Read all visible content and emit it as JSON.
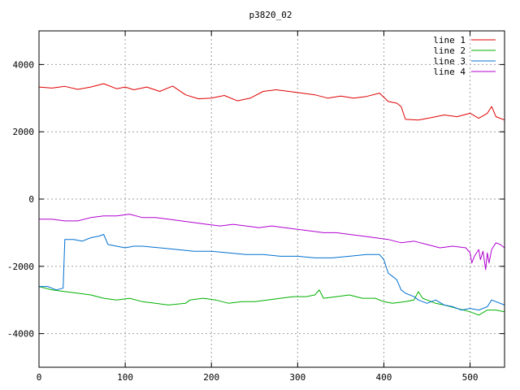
{
  "chart_data": {
    "type": "line",
    "title": "p3820_02",
    "xlabel": "",
    "ylabel": "",
    "xlim": [
      0,
      540
    ],
    "ylim": [
      -5000,
      5000
    ],
    "xticks": [
      0,
      100,
      200,
      300,
      400,
      500
    ],
    "yticks": [
      -4000,
      -2000,
      0,
      2000,
      4000
    ],
    "grid": true,
    "legend_position": "top-right",
    "series": [
      {
        "name": "line 1",
        "color": "#e00000",
        "points": [
          [
            0,
            3330
          ],
          [
            15,
            3300
          ],
          [
            30,
            3350
          ],
          [
            45,
            3260
          ],
          [
            60,
            3330
          ],
          [
            75,
            3430
          ],
          [
            90,
            3280
          ],
          [
            100,
            3330
          ],
          [
            110,
            3250
          ],
          [
            125,
            3330
          ],
          [
            140,
            3200
          ],
          [
            155,
            3360
          ],
          [
            170,
            3100
          ],
          [
            185,
            2980
          ],
          [
            200,
            3000
          ],
          [
            215,
            3080
          ],
          [
            230,
            2920
          ],
          [
            245,
            3000
          ],
          [
            260,
            3200
          ],
          [
            275,
            3250
          ],
          [
            290,
            3200
          ],
          [
            305,
            3150
          ],
          [
            320,
            3100
          ],
          [
            335,
            3000
          ],
          [
            350,
            3060
          ],
          [
            365,
            3000
          ],
          [
            380,
            3050
          ],
          [
            395,
            3150
          ],
          [
            405,
            2900
          ],
          [
            415,
            2850
          ],
          [
            420,
            2750
          ],
          [
            425,
            2370
          ],
          [
            440,
            2350
          ],
          [
            455,
            2420
          ],
          [
            470,
            2500
          ],
          [
            485,
            2450
          ],
          [
            500,
            2550
          ],
          [
            510,
            2400
          ],
          [
            520,
            2550
          ],
          [
            525,
            2750
          ],
          [
            530,
            2450
          ],
          [
            540,
            2350
          ]
        ]
      },
      {
        "name": "line 2",
        "color": "#00b000",
        "points": [
          [
            0,
            -2600
          ],
          [
            15,
            -2700
          ],
          [
            30,
            -2750
          ],
          [
            45,
            -2800
          ],
          [
            60,
            -2850
          ],
          [
            75,
            -2950
          ],
          [
            90,
            -3000
          ],
          [
            105,
            -2950
          ],
          [
            120,
            -3050
          ],
          [
            135,
            -3100
          ],
          [
            150,
            -3150
          ],
          [
            170,
            -3100
          ],
          [
            175,
            -3000
          ],
          [
            190,
            -2950
          ],
          [
            205,
            -3000
          ],
          [
            220,
            -3100
          ],
          [
            235,
            -3050
          ],
          [
            250,
            -3050
          ],
          [
            265,
            -3000
          ],
          [
            280,
            -2950
          ],
          [
            295,
            -2900
          ],
          [
            310,
            -2900
          ],
          [
            320,
            -2850
          ],
          [
            325,
            -2700
          ],
          [
            330,
            -2950
          ],
          [
            345,
            -2900
          ],
          [
            360,
            -2850
          ],
          [
            375,
            -2950
          ],
          [
            390,
            -2950
          ],
          [
            400,
            -3050
          ],
          [
            410,
            -3100
          ],
          [
            425,
            -3050
          ],
          [
            435,
            -3000
          ],
          [
            440,
            -2750
          ],
          [
            445,
            -2950
          ],
          [
            460,
            -3100
          ],
          [
            470,
            -3150
          ],
          [
            485,
            -3250
          ],
          [
            500,
            -3350
          ],
          [
            510,
            -3450
          ],
          [
            520,
            -3300
          ],
          [
            530,
            -3300
          ],
          [
            540,
            -3350
          ]
        ]
      },
      {
        "name": "line 3",
        "color": "#0070d0",
        "points": [
          [
            0,
            -2600
          ],
          [
            10,
            -2600
          ],
          [
            20,
            -2700
          ],
          [
            28,
            -2650
          ],
          [
            30,
            -1200
          ],
          [
            40,
            -1200
          ],
          [
            50,
            -1250
          ],
          [
            60,
            -1150
          ],
          [
            70,
            -1100
          ],
          [
            75,
            -1050
          ],
          [
            80,
            -1350
          ],
          [
            90,
            -1400
          ],
          [
            100,
            -1450
          ],
          [
            110,
            -1400
          ],
          [
            120,
            -1400
          ],
          [
            140,
            -1450
          ],
          [
            160,
            -1500
          ],
          [
            180,
            -1550
          ],
          [
            200,
            -1550
          ],
          [
            220,
            -1600
          ],
          [
            240,
            -1650
          ],
          [
            260,
            -1650
          ],
          [
            280,
            -1700
          ],
          [
            300,
            -1700
          ],
          [
            320,
            -1750
          ],
          [
            340,
            -1750
          ],
          [
            360,
            -1700
          ],
          [
            380,
            -1650
          ],
          [
            395,
            -1650
          ],
          [
            400,
            -1800
          ],
          [
            405,
            -2200
          ],
          [
            410,
            -2300
          ],
          [
            415,
            -2400
          ],
          [
            420,
            -2700
          ],
          [
            425,
            -2800
          ],
          [
            435,
            -2900
          ],
          [
            440,
            -3000
          ],
          [
            450,
            -3100
          ],
          [
            460,
            -3000
          ],
          [
            470,
            -3150
          ],
          [
            480,
            -3200
          ],
          [
            490,
            -3300
          ],
          [
            500,
            -3250
          ],
          [
            510,
            -3300
          ],
          [
            520,
            -3200
          ],
          [
            525,
            -3000
          ],
          [
            530,
            -3050
          ],
          [
            540,
            -3150
          ]
        ]
      },
      {
        "name": "line 4",
        "color": "#b000d0",
        "points": [
          [
            0,
            -600
          ],
          [
            15,
            -600
          ],
          [
            30,
            -650
          ],
          [
            45,
            -650
          ],
          [
            60,
            -550
          ],
          [
            75,
            -500
          ],
          [
            90,
            -500
          ],
          [
            105,
            -450
          ],
          [
            120,
            -550
          ],
          [
            135,
            -550
          ],
          [
            150,
            -600
          ],
          [
            165,
            -650
          ],
          [
            180,
            -700
          ],
          [
            195,
            -750
          ],
          [
            210,
            -800
          ],
          [
            225,
            -750
          ],
          [
            240,
            -800
          ],
          [
            255,
            -850
          ],
          [
            270,
            -800
          ],
          [
            285,
            -850
          ],
          [
            300,
            -900
          ],
          [
            315,
            -950
          ],
          [
            330,
            -1000
          ],
          [
            345,
            -1000
          ],
          [
            360,
            -1050
          ],
          [
            375,
            -1100
          ],
          [
            390,
            -1150
          ],
          [
            405,
            -1200
          ],
          [
            420,
            -1300
          ],
          [
            435,
            -1250
          ],
          [
            450,
            -1350
          ],
          [
            465,
            -1450
          ],
          [
            480,
            -1400
          ],
          [
            495,
            -1450
          ],
          [
            500,
            -1600
          ],
          [
            502,
            -1900
          ],
          [
            505,
            -1700
          ],
          [
            510,
            -1500
          ],
          [
            512,
            -1800
          ],
          [
            515,
            -1550
          ],
          [
            518,
            -2100
          ],
          [
            520,
            -1600
          ],
          [
            522,
            -1900
          ],
          [
            525,
            -1500
          ],
          [
            530,
            -1300
          ],
          [
            535,
            -1350
          ],
          [
            540,
            -1450
          ]
        ]
      }
    ]
  }
}
